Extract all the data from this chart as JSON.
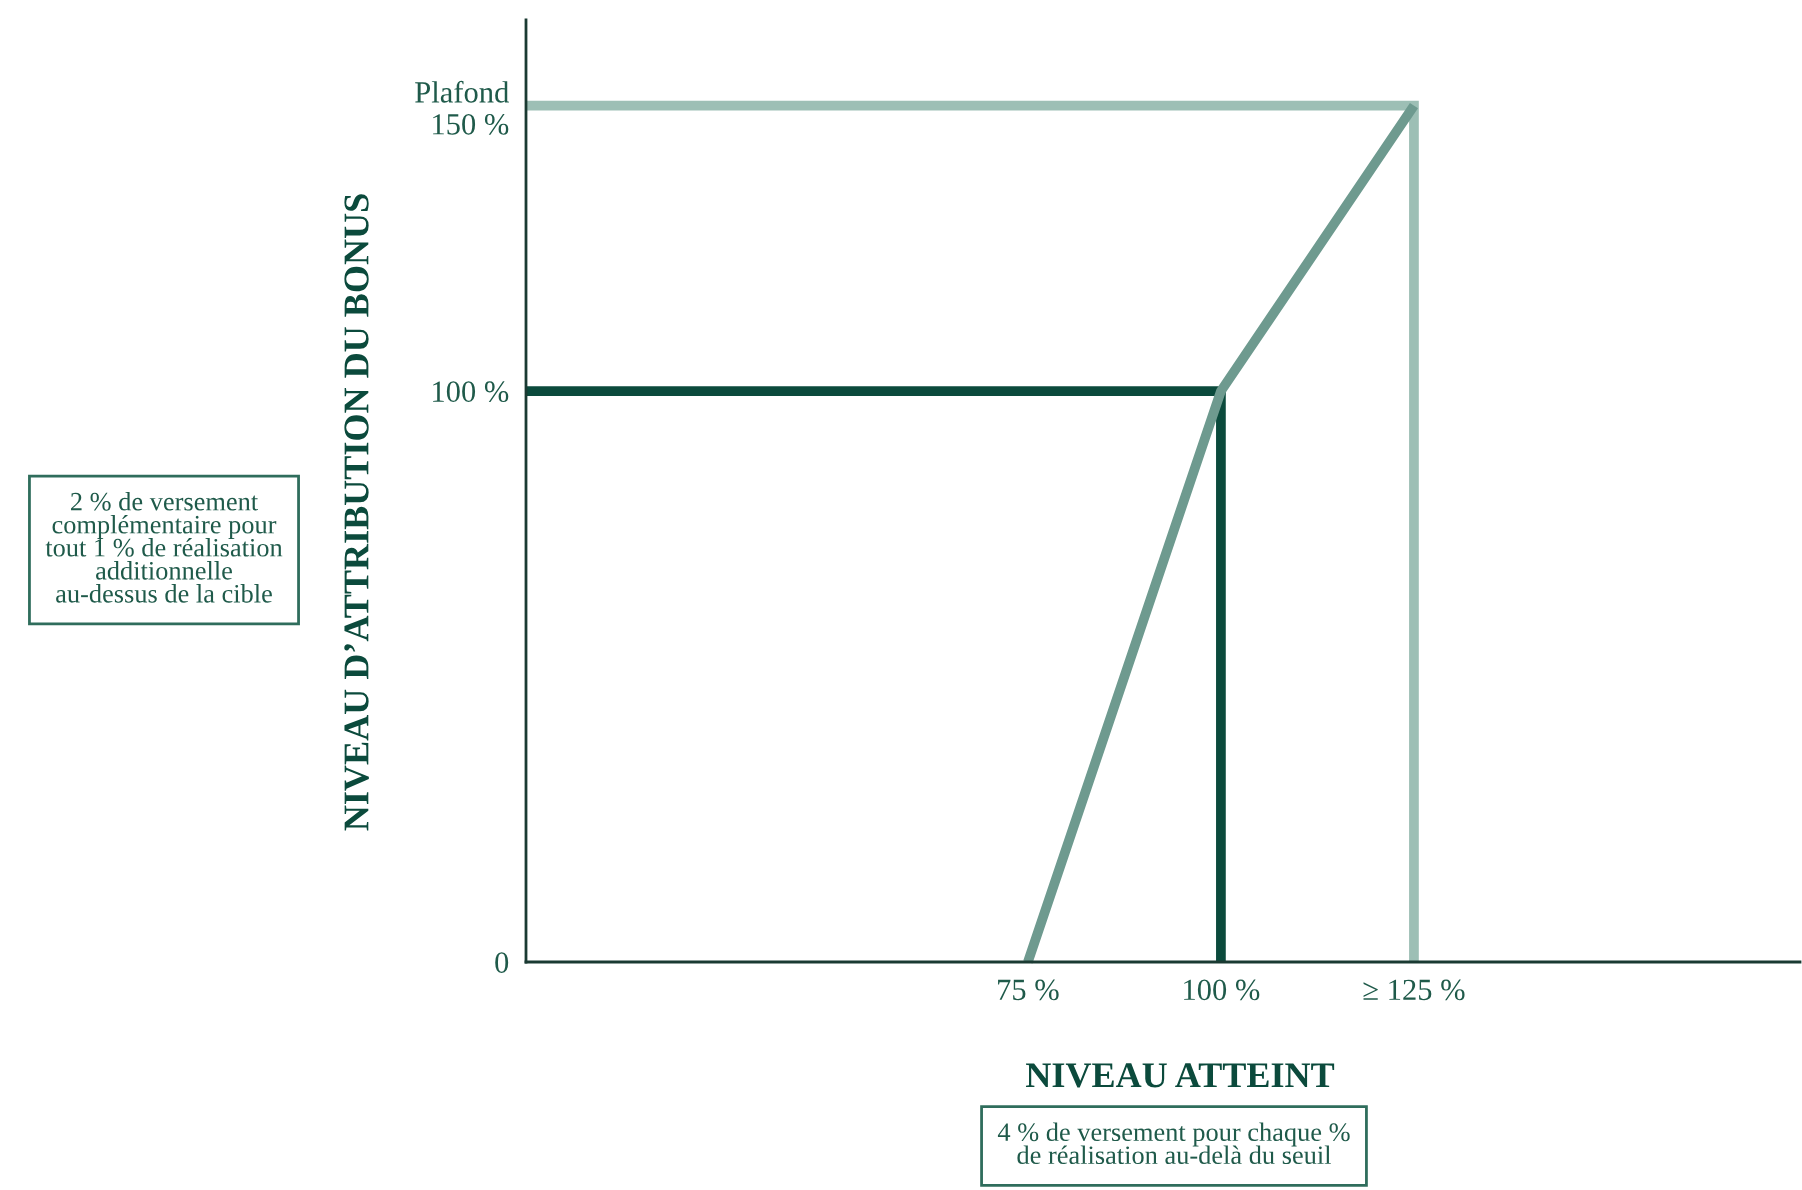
{
  "chart_data": {
    "type": "line",
    "xlabel": "NIVEAU ATTEINT",
    "ylabel": "NIVEAU D’ATTRIBUTION DU BONUS",
    "xlim": [
      10,
      175
    ],
    "ylim": [
      0,
      165
    ],
    "xticks": [
      {
        "value": 75,
        "label": "75 %"
      },
      {
        "value": 100,
        "label": "100 %"
      },
      {
        "value": 125,
        "label": "≥ 125 %"
      }
    ],
    "yticks": [
      0,
      {
        "value": 100,
        "label": "100 %"
      },
      {
        "value": 150,
        "label": "Plafond\n150 %"
      }
    ],
    "grid": false,
    "marker": "none",
    "line_style": "solid",
    "series": [
      {
        "color": "#9dbfb5",
        "x": [
          10,
          125,
          125
        ],
        "values": [
          150,
          150,
          0
        ]
      },
      {
        "color": "#0b4a3c",
        "x": [
          10,
          100,
          100
        ],
        "values": [
          100,
          100,
          0
        ]
      },
      {
        "color": "#6e9a8f",
        "x": [
          75,
          100,
          125
        ],
        "values": [
          0,
          100,
          150
        ]
      }
    ],
    "annotations": [
      "2 % de versement\ncomplémentaire pour\ntout 1 % de réalisation\nadditionnelle\nau-dessus de la cible",
      "4 % de versement pour chaque %\nde réalisation au-delà du seuil"
    ]
  }
}
